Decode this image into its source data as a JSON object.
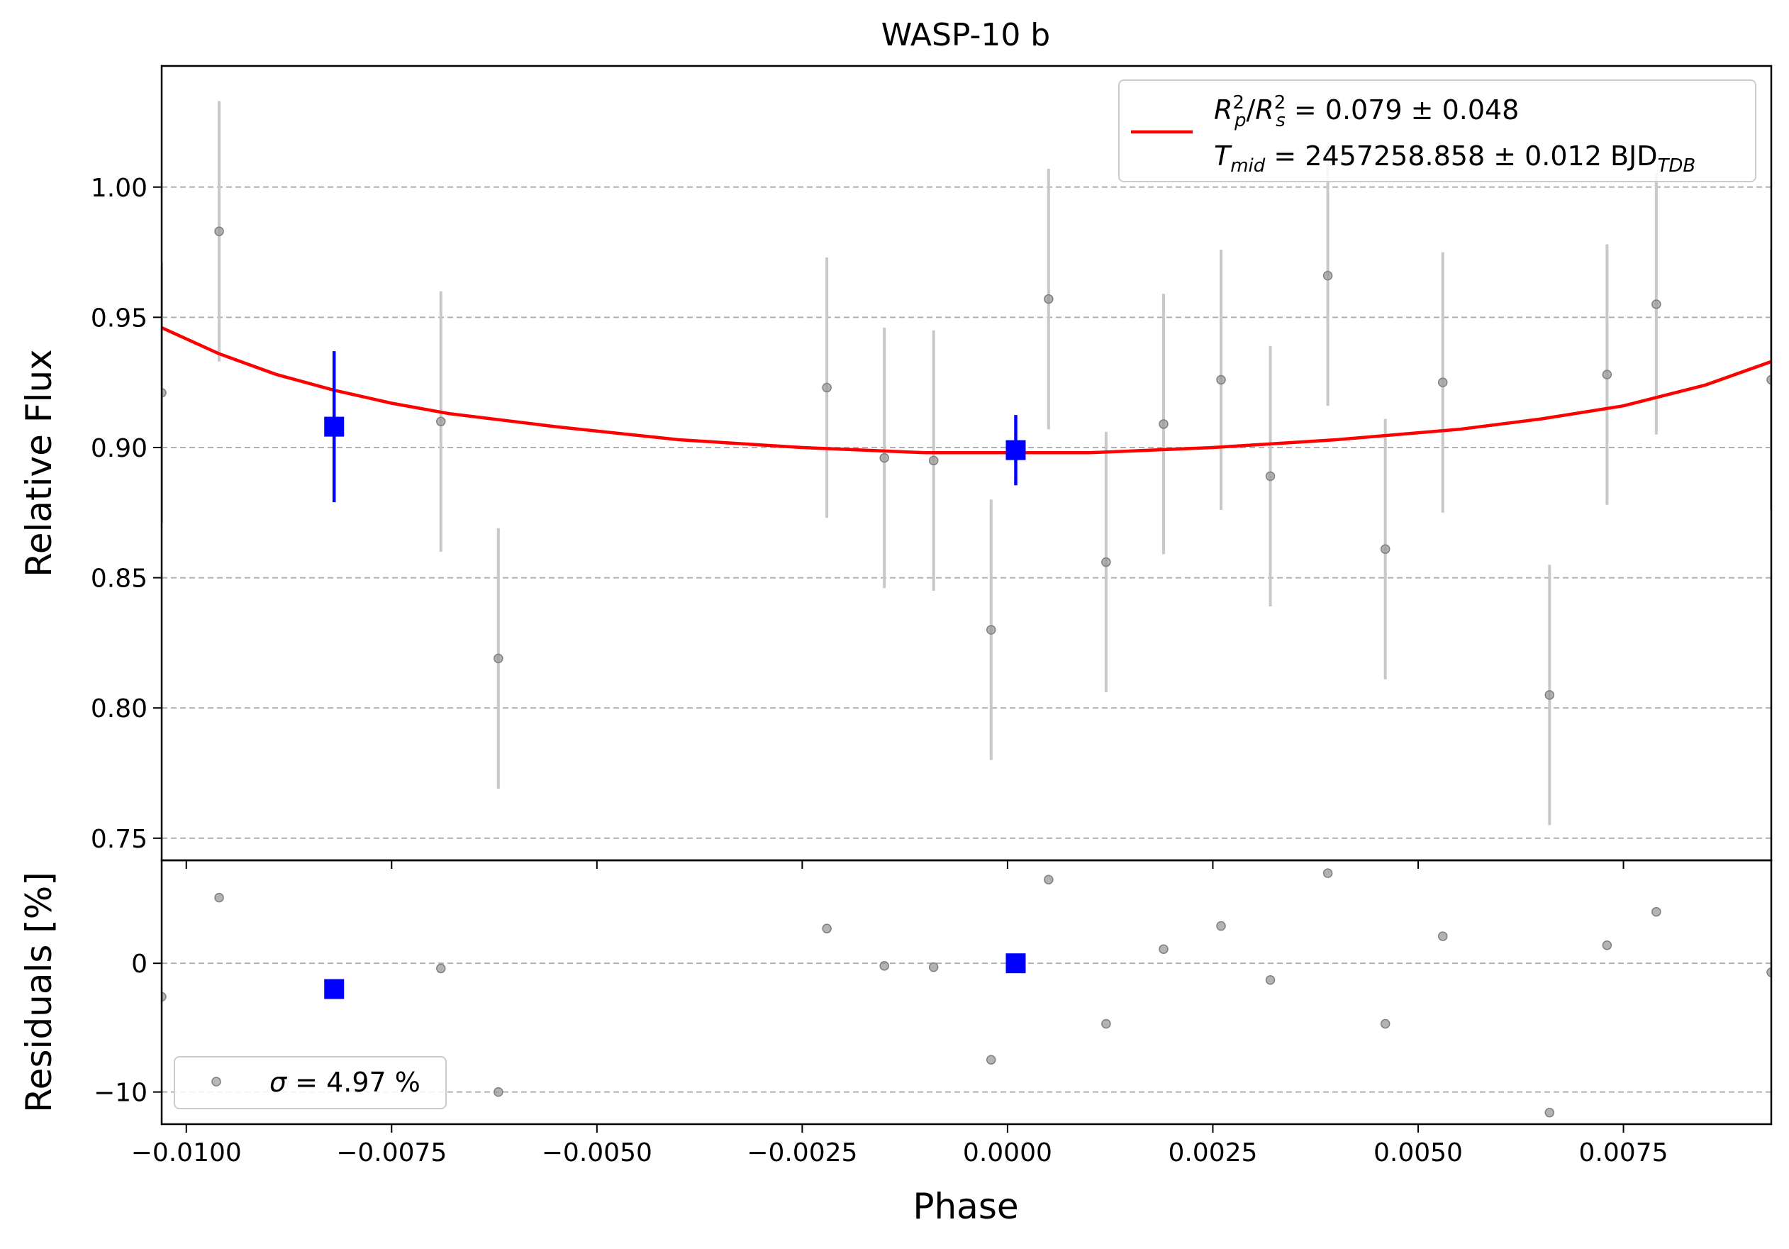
{
  "title": "WASP-10 b",
  "colors": {
    "model": "#ff0000",
    "binned": "#0000ff",
    "raw": "#999999",
    "raw_err": "#c8c8c8",
    "grid": "#b0b0b0"
  },
  "legend": {
    "main_line1": "R²p/R²s = 0.079 ± 0.048",
    "main_line2": "Tmid = 2457258.858 ± 0.012 BJDTDB",
    "residuals": "σ = 4.97 %"
  },
  "chart_data": [
    {
      "type": "scatter",
      "panel": "light-curve",
      "title": "WASP-10 b",
      "xlabel": "",
      "ylabel": "Relative Flux",
      "xlim": [
        -0.0103,
        0.0093
      ],
      "ylim": [
        0.7415,
        1.0465
      ],
      "grid": "horizontal-dashed",
      "legend_position": "top-right",
      "yticks": [
        0.75,
        0.8,
        0.85,
        0.9,
        0.95,
        1.0
      ],
      "ytick_labels": [
        "0.75",
        "0.80",
        "0.85",
        "0.90",
        "0.95",
        "1.00"
      ],
      "series": [
        {
          "kind": "raw",
          "x": [
            -0.0103,
            -0.0096,
            -0.0069,
            -0.0062,
            -0.0022,
            -0.0015,
            -0.0009,
            -0.0002,
            0.0005,
            0.0012,
            0.0019,
            0.0026,
            0.0032,
            0.0039,
            0.0046,
            0.0053,
            0.0066,
            0.0073,
            0.0079,
            0.0093
          ],
          "y": [
            0.921,
            0.983,
            0.91,
            0.819,
            0.923,
            0.896,
            0.895,
            0.83,
            0.957,
            0.856,
            0.909,
            0.926,
            0.889,
            0.966,
            0.861,
            0.925,
            0.805,
            0.928,
            0.955,
            0.926
          ],
          "yerr": [
            0.05,
            0.05,
            0.05,
            0.05,
            0.05,
            0.05,
            0.05,
            0.05,
            0.05,
            0.05,
            0.05,
            0.05,
            0.05,
            0.05,
            0.05,
            0.05,
            0.05,
            0.05,
            0.05,
            0.05
          ]
        },
        {
          "kind": "binned",
          "x": [
            -0.0082,
            0.0001
          ],
          "y": [
            0.908,
            0.899
          ],
          "yerr": [
            0.029,
            0.0135
          ]
        },
        {
          "kind": "model",
          "name": "R²p/R²s = 0.079 ± 0.048",
          "x": [
            -0.0103,
            -0.0096,
            -0.0089,
            -0.0082,
            -0.0075,
            -0.0068,
            -0.0055,
            -0.004,
            -0.0025,
            -0.001,
            0.0,
            0.001,
            0.0025,
            0.004,
            0.0055,
            0.0065,
            0.0075,
            0.0085,
            0.0093
          ],
          "y": [
            0.946,
            0.936,
            0.928,
            0.922,
            0.917,
            0.913,
            0.908,
            0.903,
            0.9,
            0.898,
            0.898,
            0.898,
            0.9,
            0.903,
            0.907,
            0.911,
            0.916,
            0.924,
            0.933
          ]
        }
      ]
    },
    {
      "type": "scatter",
      "panel": "residuals",
      "xlabel": "Phase",
      "ylabel": "Residuals [%]",
      "xlim": [
        -0.0103,
        0.0093
      ],
      "ylim": [
        -12.5,
        8.0
      ],
      "grid": "horizontal-dashed",
      "legend_position": "bottom-left",
      "yticks": [
        -10,
        0
      ],
      "ytick_labels": [
        "−10",
        "0"
      ],
      "xticks": [
        -0.01,
        -0.0075,
        -0.005,
        -0.0025,
        0.0,
        0.0025,
        0.005,
        0.0075
      ],
      "xtick_labels": [
        "−0.0100",
        "−0.0075",
        "−0.0050",
        "−0.0025",
        "0.0000",
        "0.0025",
        "0.0050",
        "0.0075"
      ],
      "series": [
        {
          "kind": "raw",
          "x": [
            -0.0103,
            -0.0096,
            -0.0069,
            -0.0062,
            -0.0022,
            -0.0015,
            -0.0009,
            -0.0002,
            0.0005,
            0.0012,
            0.0019,
            0.0026,
            0.0032,
            0.0039,
            0.0046,
            0.0053,
            0.0066,
            0.0073,
            0.0079,
            0.0093
          ],
          "y": [
            -2.6,
            5.1,
            -0.4,
            -10.0,
            2.7,
            -0.2,
            -0.3,
            -7.5,
            6.5,
            -4.7,
            1.1,
            2.9,
            -1.3,
            7.0,
            -4.7,
            2.1,
            -11.6,
            1.4,
            4.0,
            -0.7
          ]
        },
        {
          "kind": "binned",
          "x": [
            -0.0082,
            0.0001
          ],
          "y": [
            -2.0,
            0.0
          ]
        }
      ]
    }
  ]
}
